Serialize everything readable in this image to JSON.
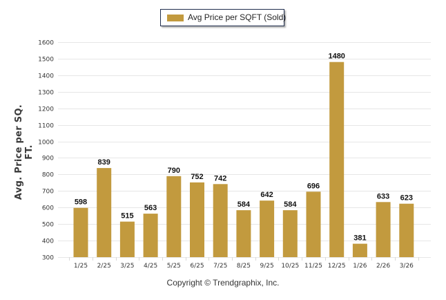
{
  "chart_data": {
    "type": "bar",
    "title": "",
    "xlabel": "",
    "ylabel": "Avg. Price per SQ. FT.",
    "categories": [
      "1/25",
      "2/25",
      "3/25",
      "4/25",
      "5/25",
      "6/25",
      "7/25",
      "8/25",
      "9/25",
      "10/25",
      "11/25",
      "12/25",
      "1/26",
      "2/26",
      "3/26"
    ],
    "series": [
      {
        "name": "Avg Price per SQFT (Sold)",
        "color": "#c29a3e",
        "values": [
          598,
          839,
          515,
          563,
          790,
          752,
          742,
          584,
          642,
          584,
          696,
          1480,
          381,
          633,
          623
        ]
      }
    ],
    "ylim": [
      300,
      1600
    ],
    "yticks": [
      300,
      400,
      500,
      600,
      700,
      800,
      900,
      1000,
      1100,
      1200,
      1300,
      1400,
      1500,
      1600
    ],
    "grid": true,
    "legend_position": "top-center",
    "data_labels": true
  },
  "footer": {
    "copyright": "Copyright © Trendgraphix, Inc."
  },
  "colors": {
    "bar": "#c29a3e",
    "grid": "#e6e6e6",
    "legend_border": "#1f2d4d"
  }
}
